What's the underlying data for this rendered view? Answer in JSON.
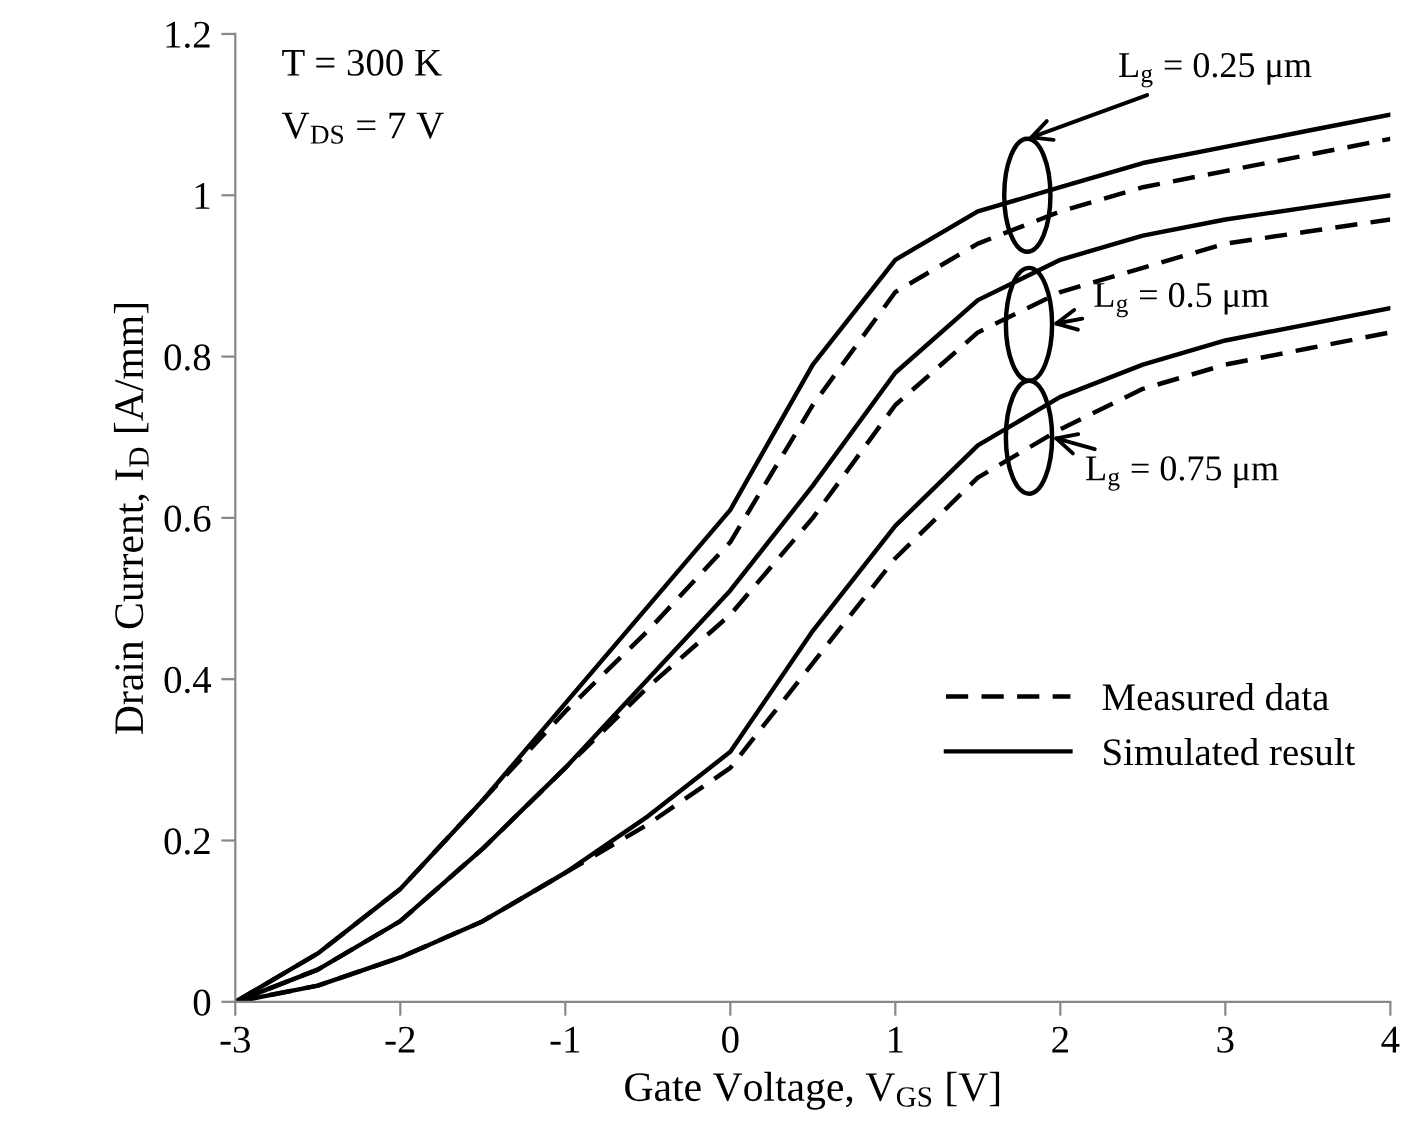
{
  "chart_data": {
    "type": "line",
    "xlabel": "Gate Voltage, V$_{GS}$ [V]",
    "ylabel": "Drain Current, I$_{D}$ [A/mm]",
    "x": [
      -3,
      -2.5,
      -2,
      -1.5,
      -1,
      -0.5,
      0,
      0.5,
      1,
      1.5,
      2,
      2.5,
      3,
      3.5,
      4
    ],
    "xlim": [
      -3,
      4
    ],
    "xticks": [
      -3,
      -2,
      -1,
      0,
      1,
      2,
      3,
      4
    ],
    "ylim": [
      0,
      1.2
    ],
    "yticks": [
      0,
      0.2,
      0.4,
      0.6,
      0.8,
      1,
      1.2
    ],
    "grid": false,
    "legend": "bottom right",
    "marker": "none",
    "series": [
      {
        "name": "Measured data",
        "color": "#000000",
        "line_style": "dashed",
        "values": [
          0,
          0.06,
          0.14,
          0.25,
          0.36,
          0.46,
          0.57,
          0.74,
          0.88,
          0.94,
          0.98,
          1.01,
          1.03,
          1.05,
          1.07
        ]
      },
      {
        "name": "Simulated result",
        "color": "#000000",
        "line_style": "solid",
        "values": [
          0,
          0.06,
          0.14,
          0.25,
          0.37,
          0.49,
          0.61,
          0.79,
          0.92,
          0.98,
          1.01,
          1.04,
          1.06,
          1.08,
          1.1
        ]
      },
      {
        "color": "#000000",
        "line_style": "dashed",
        "values": [
          0,
          0.04,
          0.1,
          0.19,
          0.29,
          0.39,
          0.48,
          0.6,
          0.74,
          0.83,
          0.88,
          0.91,
          0.94,
          0.955,
          0.97
        ]
      },
      {
        "color": "#000000",
        "line_style": "solid",
        "values": [
          0,
          0.04,
          0.1,
          0.19,
          0.29,
          0.4,
          0.51,
          0.64,
          0.78,
          0.87,
          0.92,
          0.95,
          0.97,
          0.985,
          1.0
        ]
      },
      {
        "color": "#000000",
        "line_style": "dashed",
        "values": [
          0,
          0.02,
          0.055,
          0.1,
          0.16,
          0.22,
          0.29,
          0.42,
          0.55,
          0.65,
          0.71,
          0.76,
          0.79,
          0.81,
          0.83
        ]
      },
      {
        "color": "#000000",
        "line_style": "solid",
        "values": [
          0,
          0.02,
          0.055,
          0.1,
          0.16,
          0.23,
          0.31,
          0.46,
          0.59,
          0.69,
          0.75,
          0.79,
          0.82,
          0.84,
          0.86
        ]
      }
    ],
    "annotations": [
      "T = 300 K",
      "V$_{DS}$ = 7 V",
      "L$_{g}$ = 0.25 μm",
      "L$_{g}$ = 0.5 μm",
      "L$_{g}$ = 0.75 μm"
    ]
  }
}
